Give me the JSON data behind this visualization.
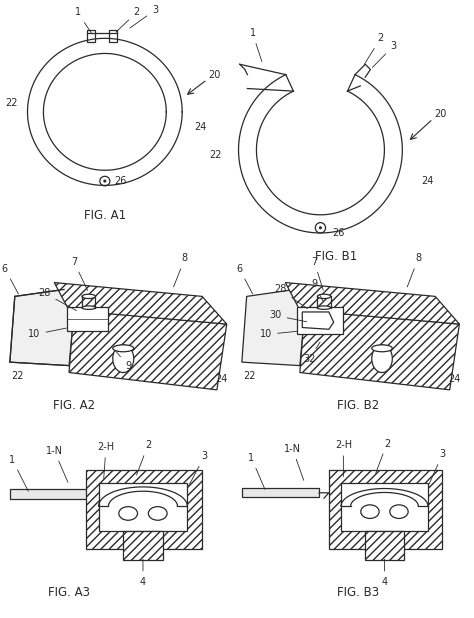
{
  "bg_color": "#ffffff",
  "line_color": "#2a2a2a",
  "fig_labels": [
    "FIG. A1",
    "FIG. B1",
    "FIG. A2",
    "FIG. B2",
    "FIG. A3",
    "FIG. B3"
  ],
  "label_fontsize": 8.5,
  "annotation_fontsize": 7.0
}
